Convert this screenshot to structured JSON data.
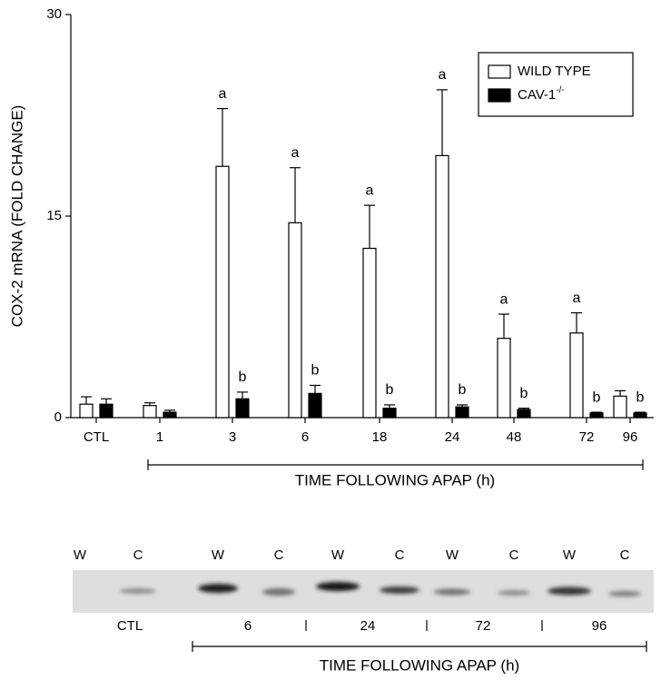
{
  "chart_data": {
    "type": "bar",
    "ylabel": "COX-2 mRNA (FOLD CHANGE)",
    "xlabel": "TIME FOLLOWING APAP (h)",
    "categories": [
      "CTL",
      "1",
      "3",
      "6",
      "18",
      "24",
      "48",
      "72",
      "96"
    ],
    "ylim": [
      0,
      30
    ],
    "yticks": [
      0,
      15,
      30
    ],
    "legend": "upper right",
    "series": [
      {
        "name": "WILD TYPE",
        "color": "#ffffff",
        "values": [
          1.0,
          0.9,
          18.7,
          14.5,
          12.6,
          19.5,
          5.9,
          6.3,
          1.6
        ],
        "errors": [
          0.55,
          0.2,
          4.3,
          4.1,
          3.2,
          4.9,
          1.8,
          1.5,
          0.4
        ],
        "letters": [
          null,
          null,
          "a",
          "a",
          "a",
          "a",
          "a",
          "a",
          null
        ]
      },
      {
        "name": "CAV-1",
        "name_sup": "-/-",
        "color": "#000000",
        "values": [
          1.0,
          0.4,
          1.4,
          1.8,
          0.7,
          0.8,
          0.6,
          0.35,
          0.35
        ],
        "errors": [
          0.4,
          0.15,
          0.5,
          0.6,
          0.25,
          0.15,
          0.1,
          0.05,
          0.05
        ],
        "letters": [
          null,
          null,
          "b",
          "b",
          "b",
          "b",
          "b",
          "b",
          "b"
        ]
      }
    ]
  },
  "blot": {
    "lanes": [
      "W",
      "C",
      "W",
      "C",
      "W",
      "C",
      "W",
      "C",
      "W",
      "C"
    ],
    "groups": [
      "CTL",
      "6",
      "24",
      "72",
      "96"
    ],
    "axis_label": "TIME FOLLOWING APAP (h)"
  }
}
